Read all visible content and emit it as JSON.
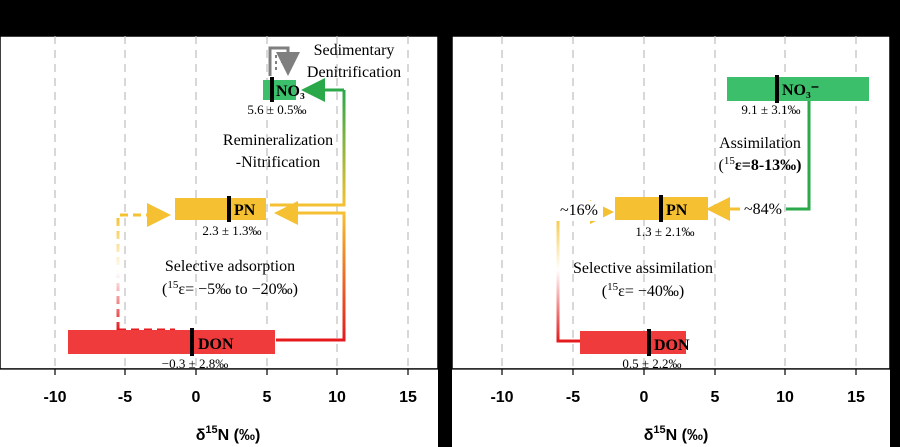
{
  "axis": {
    "xlabel_prefix": "δ",
    "xlabel_sup": "15",
    "xlabel_suffix": "N (‰)",
    "ticks": [
      "-10",
      "-5",
      "0",
      "5",
      "10",
      "15"
    ]
  },
  "left": {
    "no3": {
      "label": "NO₃",
      "value": "5.6 ± 0.5‰"
    },
    "pn": {
      "label": "PN",
      "value": "2.3 ± 1.3‰"
    },
    "don": {
      "label": "DON",
      "value": "−0.3 ± 2.8‰"
    },
    "sed_line1": "Sedimentary",
    "sed_line2": "Denitrification",
    "remin_line1": "Remineralization",
    "remin_line2": "-Nitrification",
    "adsorb_line1": "Selective adsorption",
    "adsorb_line2_pre": "(",
    "adsorb_line2_sup": "15",
    "adsorb_line2_post": "ε= −5‰ to −20‰)"
  },
  "right": {
    "no3": {
      "label": "NO₃⁻",
      "value": "9.1 ± 3.1‰"
    },
    "pn": {
      "label": "PN",
      "value": "1.3 ± 2.1‰"
    },
    "don": {
      "label": "DON",
      "value": "0.5 ± 2.2‰"
    },
    "assim_line1": "Assimilation",
    "assim_line2_pre": "(",
    "assim_line2_sup": "15",
    "assim_line2_post": "ε=8-13‰)",
    "pct_left": "~16%",
    "pct_right": "~84%",
    "sel_line1": "Selective assimilation",
    "sel_line2_pre": "(",
    "sel_line2_sup": "15",
    "sel_line2_post": "ε= −40‰)"
  },
  "colors": {
    "green": "#3cbf6a",
    "yellow": "#f5c132",
    "red": "#ef3b3b",
    "panel": "#ffffff",
    "grid": "#bdbdbd",
    "arrow_gray": "#7f7f7f"
  }
}
